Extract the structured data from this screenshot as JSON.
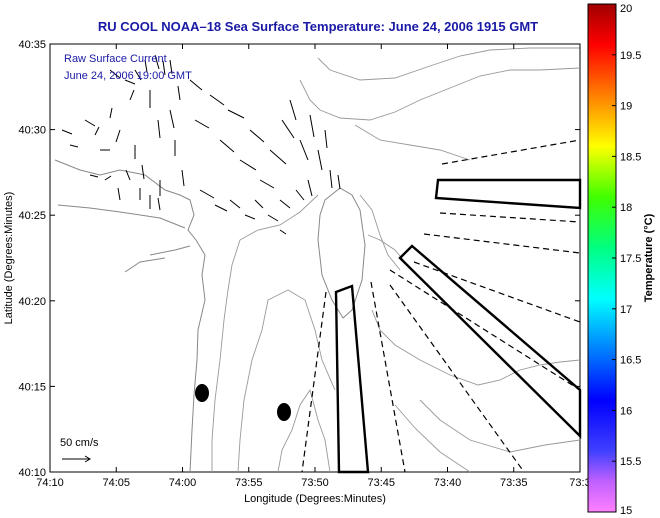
{
  "map": {
    "title": "RU COOL  NOAA–18  Sea Surface Temperature:  June 24, 2006 1915 GMT",
    "annotation_line1": "Raw Surface Current",
    "annotation_line2": "June 24, 2006 19:00 GMT",
    "xlabel": "Longitude (Degrees:Minutes)",
    "ylabel": "Latitude (Degrees:Minutes)",
    "x_ticks": [
      "74:10",
      "74:05",
      "74:00",
      "73:55",
      "73:50",
      "73:45",
      "73:40",
      "73:35",
      "73:3"
    ],
    "y_ticks": [
      "40:35",
      "40:30",
      "40:25",
      "40:20",
      "40:15",
      "40:10"
    ],
    "scale_label": "50 cm/s"
  },
  "colorbar": {
    "label": "Temperature (°C)",
    "ticks": [
      "20",
      "19.5",
      "19",
      "18.5",
      "18",
      "17.5",
      "17",
      "16.5",
      "16",
      "15.5",
      "15"
    ],
    "min": 15,
    "max": 20
  }
}
